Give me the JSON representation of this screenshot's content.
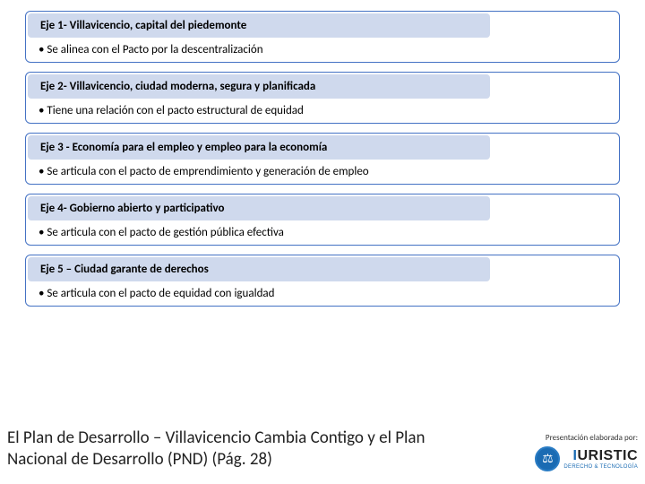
{
  "ejes": [
    {
      "title": "Eje 1- Villavicencio, capital del piedemonte",
      "bullet": "• Se alinea con el Pacto por la descentralización"
    },
    {
      "title": "Eje 2- Villavicencio, ciudad moderna, segura y planificada",
      "bullet": "•  Tiene una relación  con el pacto estructural de equidad"
    },
    {
      "title": "Eje 3 - Economía para el empleo y empleo para la economía",
      "bullet": "• Se articula con el pacto de emprendimiento y generación de empleo"
    },
    {
      "title": "Eje 4- Gobierno abierto y participativo",
      "bullet": "• Se articula con el pacto de gestión pública efectiva"
    },
    {
      "title": "Eje 5 – Ciudad garante de derechos",
      "bullet": "• Se articula con el pacto de equidad con igualdad"
    }
  ],
  "footer": {
    "title": "El Plan de Desarrollo – Villavicencio Cambia Contigo y el Plan Nacional de Desarrollo (PND) (Pág. 28)",
    "credit": "Presentación elaborada por:",
    "logo_main_i": "I",
    "logo_main_rest": "URISTIC",
    "logo_sub": "DERECHO & TECNOLOGÍA"
  },
  "colors": {
    "header_bg": "#cfd9ed",
    "border": "#4472c4",
    "logo_blue": "#1a6bb3"
  }
}
